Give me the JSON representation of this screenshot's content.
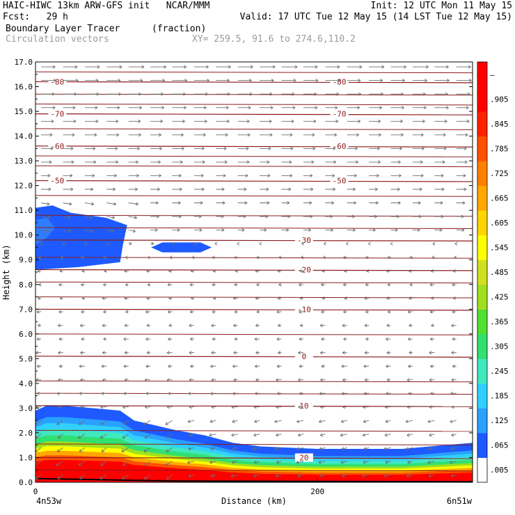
{
  "header": {
    "line1_left": "HAIC-HIWC 13km ARW-GFS init   NCAR/MMM",
    "line1_right": "Init: 12 UTC Mon 11 May 15",
    "line2_left": "Fcst:   29 h",
    "line2_right": "Valid: 17 UTC Tue 12 May 15 (14 LST Tue 12 May 15)",
    "line3_left": "Boundary Layer Tracer",
    "line3_unit": "(fraction)",
    "line4_left": "Circulation vectors",
    "line4_xy": "XY= 259.5, 91.6 to 274.6,110.2"
  },
  "chart_data": {
    "type": "heatmap",
    "title": "Boundary Layer Tracer",
    "unit": "(fraction)",
    "xlabel": "Distance (km)",
    "ylabel": "Height (km)",
    "xlim": [
      0,
      310
    ],
    "ylim": [
      0,
      17
    ],
    "x_ticks": [
      0,
      200
    ],
    "x_tick_labels": [
      "0",
      "200"
    ],
    "x_end_labels": [
      "4n53w",
      "6n51w"
    ],
    "y_ticks": [
      0,
      1,
      2,
      3,
      4,
      5,
      6,
      7,
      8,
      9,
      10,
      11,
      12,
      13,
      14,
      15,
      16,
      17
    ],
    "y_tick_labels": [
      "0.0",
      "1.0",
      "2.0",
      "3.0",
      "4.0",
      "5.0",
      "6.0",
      "7.0",
      "8.0",
      "9.0",
      "10.0",
      "11.0",
      "12.0",
      "13.0",
      "14.0",
      "15.0",
      "16.0",
      "17.0"
    ],
    "colorbar": {
      "labels": [
        ".005",
        ".065",
        ".125",
        ".185",
        ".245",
        ".305",
        ".365",
        ".425",
        ".485",
        ".545",
        ".605",
        ".665",
        ".725",
        ".785",
        ".845",
        ".905",
        "–"
      ],
      "colors": [
        "#ffffff",
        "#1e5aff",
        "#2aa0ff",
        "#30d0ff",
        "#40e8c0",
        "#30e070",
        "#50e030",
        "#a0e020",
        "#d0e020",
        "#ffff00",
        "#ffd400",
        "#ffa800",
        "#ff8000",
        "#ff5000",
        "#ff2000",
        "#ff0000",
        "#ff0000"
      ]
    },
    "temperature_contours": {
      "labels": [
        "20",
        "10",
        "0",
        "-10",
        "-20",
        "-30",
        "-50",
        "-60",
        "-70",
        "-80"
      ],
      "heights_km": [
        1.0,
        3.1,
        5.1,
        7.0,
        8.6,
        9.8,
        12.2,
        13.6,
        14.9,
        16.2
      ]
    },
    "surface_tracer_top_km": [
      [
        0,
        2.9
      ],
      [
        8,
        3.1
      ],
      [
        20,
        3.1
      ],
      [
        40,
        3.0
      ],
      [
        60,
        2.9
      ],
      [
        70,
        2.5
      ],
      [
        85,
        2.3
      ],
      [
        100,
        2.1
      ],
      [
        120,
        1.9
      ],
      [
        140,
        1.6
      ],
      [
        160,
        1.45
      ],
      [
        200,
        1.35
      ],
      [
        260,
        1.35
      ],
      [
        290,
        1.5
      ],
      [
        310,
        1.6
      ]
    ],
    "upper_tracer_patches": [
      {
        "x": [
          0,
          65
        ],
        "ylim": [
          8.6,
          11.2
        ]
      },
      {
        "x": [
          82,
          125
        ],
        "ylim": [
          9.3,
          9.7
        ]
      }
    ],
    "wind_regimes": [
      {
        "height_range_km": [
          10,
          17
        ],
        "direction": "eastward"
      },
      {
        "height_range_km": [
          5,
          9.5
        ],
        "direction": "westward, weak"
      },
      {
        "height_range_km": [
          0,
          3
        ],
        "direction": "westward/southward"
      }
    ]
  }
}
